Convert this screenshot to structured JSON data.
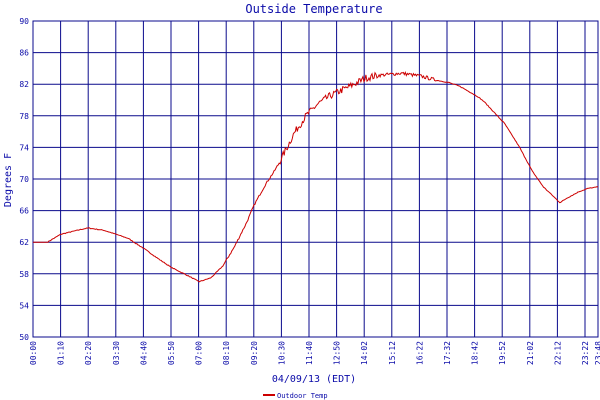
{
  "chart_data": {
    "type": "line",
    "title": "Outside Temperature",
    "xlabel": "04/09/13 (EDT)",
    "ylabel": "Degrees F",
    "ylim": [
      50,
      90
    ],
    "yticks": [
      "90",
      "86",
      "82",
      "78",
      "74",
      "70",
      "66",
      "62",
      "58",
      "54",
      "50"
    ],
    "xticks": [
      "00:00",
      "01:10",
      "02:20",
      "03:30",
      "04:40",
      "05:50",
      "07:00",
      "08:10",
      "09:20",
      "10:30",
      "11:40",
      "12:50",
      "14:02",
      "15:12",
      "16:22",
      "17:32",
      "18:42",
      "19:52",
      "21:02",
      "22:12",
      "23:22",
      "23:48"
    ],
    "grid": true,
    "colors": {
      "grid": "#0a0a8c",
      "line": "#cc0000",
      "text": "#0a0aa8"
    },
    "legend": {
      "placement": "bottom-left"
    },
    "series": [
      {
        "name": "Outdoor Temp",
        "x": [
          0,
          0.6,
          1.17,
          2.0,
          2.33,
          3.0,
          3.5,
          4.0,
          4.67,
          5.33,
          5.83,
          6.5,
          7.0,
          7.5,
          8.0,
          8.5,
          9.0,
          9.33,
          9.83,
          10.17,
          10.5,
          11.0,
          11.5,
          12.0,
          12.5,
          12.83,
          13.33,
          14.03,
          14.5,
          15.2,
          15.5,
          16.37,
          17.0,
          17.53,
          18.0,
          18.7,
          19.0,
          19.87,
          20.5,
          21.03,
          21.5,
          22.2,
          22.5,
          23.0,
          23.37,
          23.8
        ],
        "values": [
          62.0,
          62.0,
          63.0,
          63.6,
          63.8,
          63.5,
          63.0,
          62.5,
          61.2,
          59.8,
          58.8,
          57.8,
          57.0,
          57.5,
          59.0,
          61.5,
          64.5,
          66.8,
          69.5,
          71.0,
          72.8,
          75.8,
          78.0,
          79.5,
          80.5,
          81.0,
          81.7,
          82.8,
          83.1,
          83.3,
          83.4,
          83.0,
          82.5,
          82.2,
          81.7,
          80.5,
          79.8,
          77.0,
          74.0,
          71.0,
          69.0,
          67.0,
          67.6,
          68.4,
          68.8,
          69.0
        ]
      }
    ]
  }
}
